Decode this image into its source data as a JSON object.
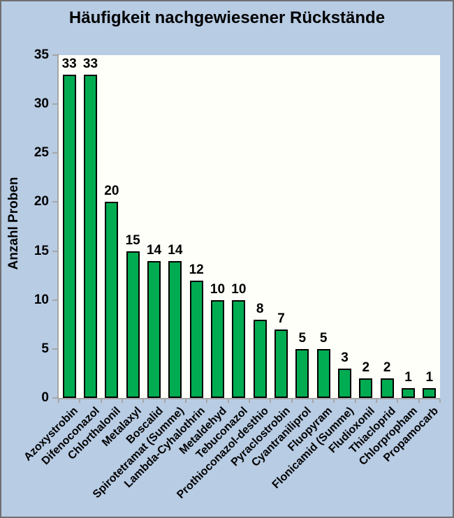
{
  "chart_data": {
    "type": "bar",
    "title": "Häufigkeit nachgewiesener Rückstände",
    "xlabel": "",
    "ylabel": "Anzahl Proben",
    "categories": [
      "Azoxystrobin",
      "Difenoconazol",
      "Chlorthalonil",
      "Metalaxyl",
      "Boscalid",
      "Spirotetramat (Summe)",
      "Lambda-Cyhalothrin",
      "Metaldehyd",
      "Tebuconazol",
      "Prothioconazol-desthio",
      "Pyraclostrobin",
      "Cyantraniliprol",
      "Fluopyram",
      "Flonicamid (Summe)",
      "Fludioxonil",
      "Thiacloprid",
      "Chlorpropham",
      "Propamocarb"
    ],
    "values": [
      33,
      33,
      20,
      15,
      14,
      14,
      12,
      10,
      10,
      8,
      7,
      5,
      5,
      3,
      2,
      2,
      1,
      1
    ],
    "value_labels_shown": true,
    "ylim": [
      0,
      35
    ],
    "yticks": [
      0,
      5,
      10,
      15,
      20,
      25,
      30,
      35
    ],
    "grid": false,
    "legend": "none",
    "colors": {
      "bar_fill": "#00AC52",
      "bar_border": "#000000",
      "background": "#B8CCE4",
      "plot_background": "#FEFFF8",
      "axis": "#A6A6A6",
      "text": "#000000",
      "frame_border": "#707070"
    }
  }
}
